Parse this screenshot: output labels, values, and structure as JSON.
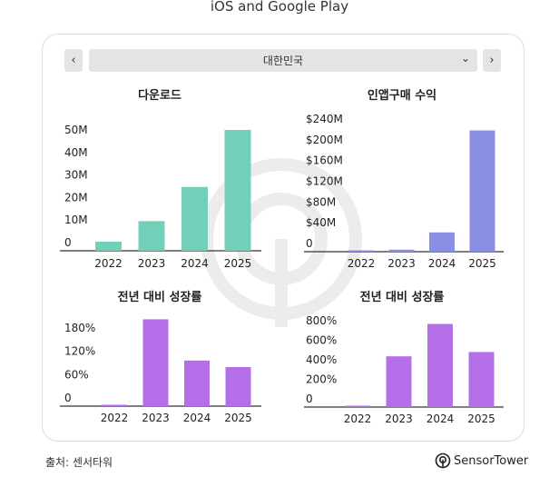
{
  "header": {
    "title": "iOS and Google Play"
  },
  "selector": {
    "prev_icon": "chevron-left-icon",
    "next_icon": "chevron-right-icon",
    "value": "대한민국",
    "dropdown_icon": "chevron-down-icon"
  },
  "colors": {
    "downloads": "#72cfb8",
    "revenue": "#8a8fe3",
    "growth": "#b36ee8",
    "axis": "#333333",
    "text": "#222222",
    "watermark": "#ececec"
  },
  "chart_data": [
    {
      "type": "bar",
      "title": "다운로드",
      "categories": [
        "2022",
        "2023",
        "2024",
        "2025"
      ],
      "values": [
        4,
        13,
        28,
        53
      ],
      "unit": "M",
      "yticks": [
        "0",
        "10M",
        "20M",
        "30M",
        "40M",
        "50M"
      ],
      "ylim": [
        0,
        53
      ],
      "grid": false,
      "legend": "none"
    },
    {
      "type": "bar",
      "title": "인앱구매 수익",
      "categories": [
        "2022",
        "2023",
        "2024",
        "2025"
      ],
      "values": [
        1,
        4,
        38,
        239
      ],
      "unit": "$M",
      "yticks": [
        "0",
        "$40M",
        "$80M",
        "$120M",
        "$160M",
        "$200M",
        "$240M"
      ],
      "ylim": [
        0,
        240
      ],
      "grid": false,
      "legend": "none"
    },
    {
      "type": "bar",
      "title": "전년 대비 성장률",
      "categories": [
        "2022",
        "2023",
        "2024",
        "2025"
      ],
      "values": [
        2,
        200,
        105,
        90
      ],
      "unit": "%",
      "yticks": [
        "0",
        "60%",
        "120%",
        "180%"
      ],
      "ylim": [
        0,
        180
      ],
      "grid": false,
      "legend": "none"
    },
    {
      "type": "bar",
      "title": "전년 대비 성장률",
      "categories": [
        "2022",
        "2023",
        "2024",
        "2025"
      ],
      "values": [
        3,
        470,
        770,
        510
      ],
      "unit": "%",
      "yticks": [
        "0",
        "200%",
        "400%",
        "600%",
        "800%"
      ],
      "ylim": [
        0,
        800
      ],
      "grid": false,
      "legend": "none"
    }
  ],
  "footer": {
    "source": "출처: 센서타워",
    "brand": "SensorTower",
    "brand_icon": "sensortower-logo-icon"
  }
}
